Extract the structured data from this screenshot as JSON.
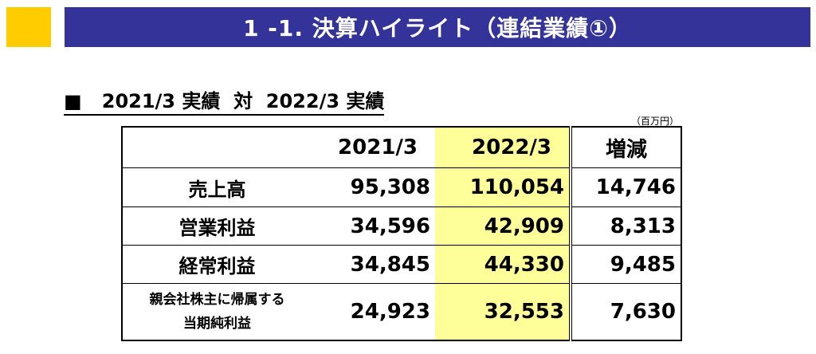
{
  "header": {
    "title": "1 -1.  決算ハイライト（連結業績①）"
  },
  "subtitle": "■   2021/3 実績  対  2022/3 実績",
  "unit": "（百万円）",
  "table": {
    "columns": [
      "",
      "2021/3",
      "2022/3",
      "増減"
    ],
    "rows": [
      {
        "label": "売上高",
        "fy2021": "95,308",
        "fy2022": "110,054",
        "diff": "14,746"
      },
      {
        "label": "営業利益",
        "fy2021": "34,596",
        "fy2022": "42,909",
        "diff": "8,313"
      },
      {
        "label": "経常利益",
        "fy2021": "34,845",
        "fy2022": "44,330",
        "diff": "9,485"
      },
      {
        "label_line1": "親会社株主に帰属する",
        "label_line2": "当期純利益",
        "fy2021": "24,923",
        "fy2022": "32,553",
        "diff": "7,630"
      }
    ]
  },
  "colors": {
    "title_bar": "#333399",
    "accent_square": "#ffcc00",
    "highlight_column": "#ffff99"
  }
}
